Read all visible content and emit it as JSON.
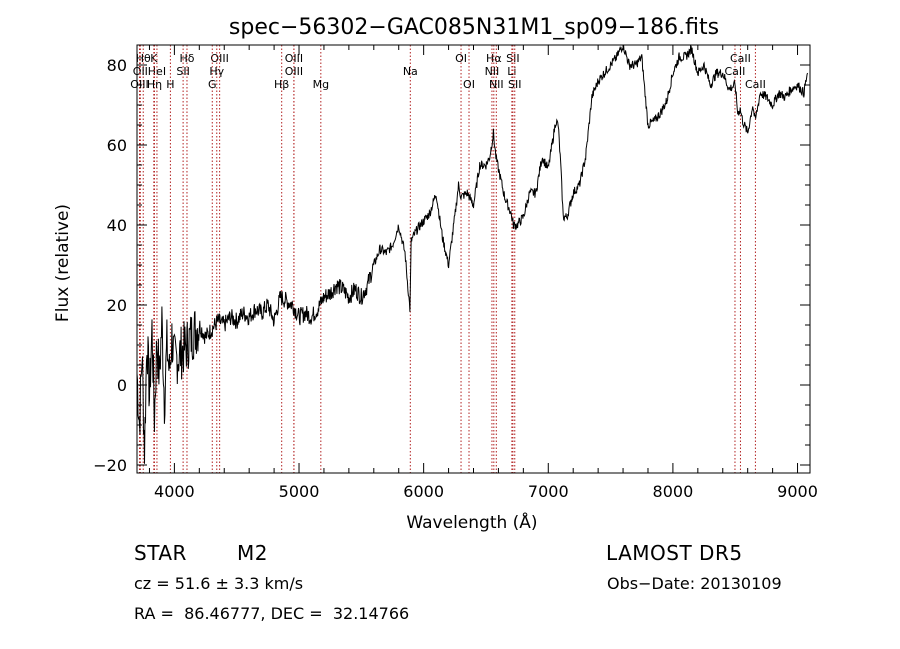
{
  "chart_data": {
    "type": "line",
    "title": "spec−56302−GAC085N31M1_sp09−186.fits",
    "xlabel": "Wavelength (Å)",
    "ylabel": "Flux (relative)",
    "xlim": [
      3700,
      9100
    ],
    "ylim": [
      -22,
      85
    ],
    "x_ticks": [
      4000,
      5000,
      6000,
      7000,
      8000,
      9000
    ],
    "y_ticks": [
      -20,
      0,
      20,
      40,
      60,
      80
    ],
    "x_tick_labels": [
      "4000",
      "5000",
      "6000",
      "7000",
      "8000",
      "9000"
    ],
    "y_tick_labels": [
      "−20",
      "0",
      "20",
      "40",
      "60",
      "80"
    ],
    "grid": false,
    "line_color": "#000000",
    "marker_color": "#b22222",
    "series": [
      {
        "x": [
          3700,
          3720,
          3740,
          3760,
          3780,
          3800,
          3820,
          3840,
          3860,
          3880,
          3900,
          3920,
          3940,
          3960,
          3980,
          4000,
          4050,
          4100,
          4150,
          4200,
          4250,
          4300,
          4350,
          4400,
          4450,
          4500,
          4550,
          4600,
          4650,
          4700,
          4750,
          4800,
          4850,
          4900,
          4950,
          5000,
          5050,
          5100,
          5150,
          5200,
          5250,
          5300,
          5350,
          5400,
          5450,
          5500,
          5550,
          5600,
          5650,
          5700,
          5750,
          5800,
          5850,
          5890,
          5900,
          5950,
          6000,
          6050,
          6100,
          6150,
          6200,
          6250,
          6280,
          6300,
          6350,
          6400,
          6450,
          6500,
          6530,
          6560,
          6580,
          6600,
          6650,
          6700,
          6720,
          6750,
          6800,
          6850,
          6900,
          6950,
          7000,
          7030,
          7060,
          7080,
          7100,
          7120,
          7150,
          7200,
          7250,
          7300,
          7350,
          7400,
          7450,
          7500,
          7550,
          7580,
          7600,
          7620,
          7650,
          7700,
          7750,
          7800,
          7850,
          7900,
          7950,
          8000,
          8050,
          8100,
          8150,
          8200,
          8250,
          8300,
          8350,
          8400,
          8450,
          8500,
          8520,
          8540,
          8560,
          8600,
          8640,
          8660,
          8700,
          8750,
          8800,
          8850,
          8900,
          8950,
          9000,
          9050,
          9080
        ],
        "y": [
          3,
          -10,
          8,
          -16,
          12,
          -3,
          14,
          -8,
          11,
          2,
          16,
          -4,
          10,
          3,
          12,
          6,
          8,
          10,
          13,
          15,
          12,
          14,
          16,
          15,
          17,
          16,
          18,
          17,
          19,
          18,
          20,
          16,
          22,
          21,
          20,
          17,
          18,
          17,
          19,
          22,
          23,
          25,
          24,
          22,
          24,
          22,
          25,
          30,
          34,
          33,
          35,
          40,
          33,
          19,
          36,
          39,
          41,
          43,
          48,
          37,
          30,
          42,
          50,
          47,
          48,
          45,
          55,
          55,
          57,
          63,
          57,
          54,
          47,
          43,
          40,
          40,
          42,
          48,
          48,
          57,
          54,
          60,
          66,
          65,
          55,
          42,
          42,
          48,
          50,
          57,
          72,
          76,
          78,
          80,
          82,
          84,
          85,
          83,
          80,
          80,
          82,
          65,
          66,
          68,
          71,
          78,
          82,
          82,
          84,
          78,
          80,
          75,
          78,
          78,
          74,
          75,
          68,
          69,
          66,
          63,
          70,
          66,
          73,
          72,
          70,
          73,
          72,
          74,
          75,
          73,
          78
        ]
      }
    ],
    "line_markers": [
      {
        "x": 3750,
        "label": "Hθ",
        "row": 0
      },
      {
        "x": 3727,
        "label": "OII",
        "row": 1
      },
      {
        "x": 3720,
        "label": "OIII",
        "row": 2
      },
      {
        "x": 3835,
        "label": "K",
        "row": 0
      },
      {
        "x": 3860,
        "label": "HeI",
        "row": 1
      },
      {
        "x": 3840,
        "label": "Hη",
        "row": 2
      },
      {
        "x": 4101,
        "label": "Hδ",
        "row": 0
      },
      {
        "x": 4070,
        "label": "SII",
        "row": 1
      },
      {
        "x": 3968,
        "label": "H",
        "row": 2
      },
      {
        "x": 4363,
        "label": "OIII",
        "row": 0
      },
      {
        "x": 4340,
        "label": "Hγ",
        "row": 1
      },
      {
        "x": 4304,
        "label": "G",
        "row": 2
      },
      {
        "x": 4959,
        "label": "OIII",
        "row": 0
      },
      {
        "x": 4959,
        "label": "OIII",
        "row": 1
      },
      {
        "x": 4861,
        "label": "Hβ",
        "row": 2
      },
      {
        "x": 5175,
        "label": "Mg",
        "row": 2
      },
      {
        "x": 5893,
        "label": "Na",
        "row": 1
      },
      {
        "x": 6300,
        "label": "OI",
        "row": 0
      },
      {
        "x": 6364,
        "label": "OI",
        "row": 2
      },
      {
        "x": 6563,
        "label": "Hα",
        "row": 0
      },
      {
        "x": 6548,
        "label": "NII",
        "row": 1
      },
      {
        "x": 6583,
        "label": "NII",
        "row": 2
      },
      {
        "x": 6716,
        "label": "SII",
        "row": 0
      },
      {
        "x": 6708,
        "label": "Li",
        "row": 1
      },
      {
        "x": 6731,
        "label": "SII",
        "row": 2
      },
      {
        "x": 8542,
        "label": "CaII",
        "row": 0
      },
      {
        "x": 8498,
        "label": "CaII",
        "row": 1
      },
      {
        "x": 8662,
        "label": "CaII",
        "row": 2
      }
    ]
  },
  "info": {
    "class": "STAR",
    "subclass": "M2",
    "survey": "LAMOST DR5",
    "cz": "cz = 51.6 ± 3.3 km/s",
    "obs_date": "Obs−Date: 20130109",
    "radec": "RA =  86.46777, DEC =  32.14766"
  }
}
